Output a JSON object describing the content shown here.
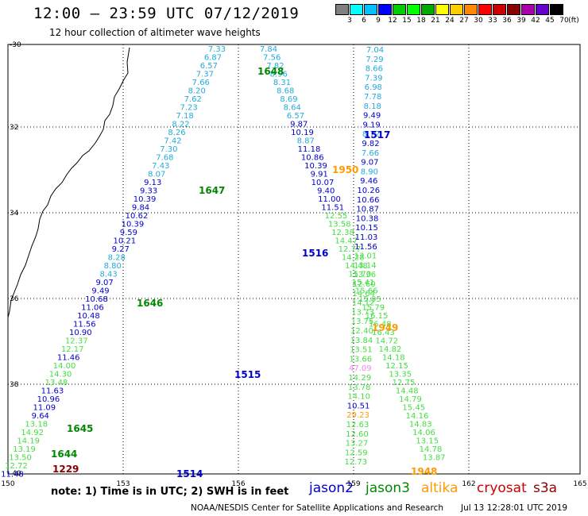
{
  "header": {
    "title": "12:00 – 23:59 UTC 07/12/2019",
    "subtitle": "12 hour collection of altimeter wave heights"
  },
  "color_scale": {
    "unit": "(ft)",
    "colors": [
      "#808080",
      "#00ffff",
      "#00bfff",
      "#0000ff",
      "#00cc00",
      "#00ff00",
      "#00aa00",
      "#ffff00",
      "#ffcc00",
      "#ff8800",
      "#ff0000",
      "#cc0000",
      "#880000",
      "#aa00aa",
      "#6600cc",
      "#000000"
    ],
    "labels": [
      "3",
      "6",
      "9",
      "12",
      "15",
      "18",
      "21",
      "24",
      "27",
      "30",
      "33",
      "36",
      "39",
      "42",
      "45",
      "70"
    ]
  },
  "axes": {
    "lon_labels": [
      "150",
      "153",
      "156",
      "159",
      "162",
      "165"
    ],
    "lat_labels": [
      "-30",
      "32",
      "34",
      "36",
      "38",
      "-40"
    ]
  },
  "passes": [
    {
      "id": "1648",
      "color": "#008800"
    },
    {
      "id": "1647",
      "color": "#008800"
    },
    {
      "id": "1646",
      "color": "#008800"
    },
    {
      "id": "1645",
      "color": "#008800"
    },
    {
      "id": "1644",
      "color": "#008800"
    },
    {
      "id": "1229",
      "color": "#880000"
    },
    {
      "id": "1517",
      "color": "#0000cc"
    },
    {
      "id": "1516",
      "color": "#0000cc"
    },
    {
      "id": "1515",
      "color": "#0000cc"
    },
    {
      "id": "1514",
      "color": "#0000cc"
    },
    {
      "id": "1950",
      "color": "#ff9900"
    },
    {
      "id": "1949",
      "color": "#ff9900"
    },
    {
      "id": "1948",
      "color": "#ff9900"
    }
  ],
  "tracks": {
    "a": [
      "7.33",
      "6.87",
      "6.57",
      "7.37",
      "7.66",
      "8.20",
      "7.62",
      "7.23",
      "7.18",
      "8.22",
      "8.26",
      "7.42",
      "7.30",
      "7.68",
      "7.43",
      "8.07",
      "9.13",
      "9.33",
      "10.39",
      "9.84",
      "10.62",
      "10.39",
      "9.59",
      "10.21",
      "9.27",
      "8.28",
      "8.80",
      "8.43",
      "9.07",
      "9.49",
      "10.68",
      "11.06",
      "10.48",
      "11.56",
      "10.90",
      "12.37",
      "12.17",
      "11.46",
      "14.00",
      "14.30",
      "13.48",
      "11.63",
      "10.96",
      "11.09",
      "9.64",
      "13.18",
      "14.92",
      "14.19",
      "13.19",
      "13.50",
      "12.72",
      "11.48"
    ],
    "b": [
      "7.84",
      "7.56",
      "7.82",
      "8.96",
      "8.31",
      "8.68",
      "8.69",
      "8.64",
      "6.57",
      "9.87",
      "10.19",
      "8.87",
      "11.18",
      "10.86",
      "10.39",
      "9.91",
      "10.07",
      "9.40",
      "11.00",
      "11.51",
      "12.55",
      "13.58",
      "12.38",
      "14.47",
      "12.77",
      "14.28",
      "14.48",
      "15.70",
      "15.41",
      "15.66",
      "15.95",
      "15.79",
      "16.15",
      "16.48",
      "16.43",
      "14.72",
      "14.82",
      "14.18",
      "12.15",
      "13.35",
      "12.75",
      "14.48",
      "14.79",
      "15.45",
      "14.16",
      "14.83",
      "14.06",
      "13.15",
      "14.78",
      "13.87"
    ],
    "c": [
      "7.04",
      "7.29",
      "8.66",
      "7.39",
      "6.98",
      "7.78",
      "8.18",
      "9.49",
      "9.19",
      "8.72",
      "9.82",
      "7.66",
      "9.07",
      "8.90",
      "9.46",
      "10.26",
      "10.66",
      "10.87",
      "10.38",
      "10.15",
      "11.03",
      "11.56",
      "13.01",
      "13.14",
      "13.36",
      "12.60",
      "14.64",
      "14.12",
      "13.73",
      "13.75",
      "12.40",
      "13.84",
      "13.51",
      "13.66",
      "47.09",
      "14.29",
      "13.78",
      "14.10",
      "10.51",
      "29.23",
      "12.63",
      "12.60",
      "13.27",
      "12.59",
      "12.73"
    ]
  },
  "footer": {
    "note": "note: 1) Time is in UTC; 2) SWH is in feet",
    "satellites": [
      {
        "name": "jason2",
        "color": "#0000cc"
      },
      {
        "name": "jason3",
        "color": "#008800"
      },
      {
        "name": "altika",
        "color": "#ff9900"
      },
      {
        "name": "cryosat",
        "color": "#cc0000"
      },
      {
        "name": "s3a",
        "color": "#880000"
      }
    ],
    "credit": "NOAA/NESDIS Center for Satellite Applications and Research",
    "generated": "Jul 13 12:28:01 UTC 2019"
  }
}
